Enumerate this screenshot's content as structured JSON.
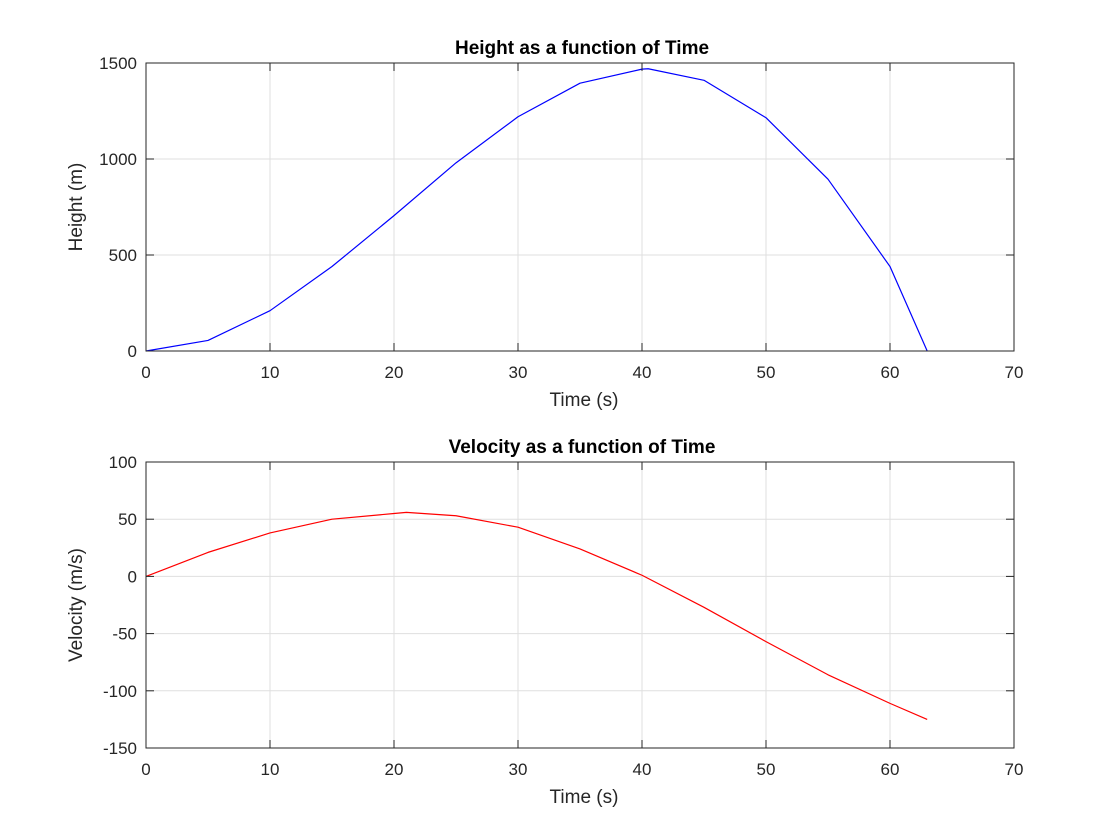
{
  "figure": {
    "background": "#ffffff"
  },
  "chart_data": [
    {
      "type": "line",
      "title": "Height as a function of Time",
      "xlabel": "Time (s)",
      "ylabel": "Height (m)",
      "xlim": [
        0,
        70
      ],
      "ylim": [
        0,
        1500
      ],
      "xticks": [
        0,
        10,
        20,
        30,
        40,
        50,
        60,
        70
      ],
      "yticks": [
        0,
        500,
        1000,
        1500
      ],
      "grid": true,
      "legend": "none",
      "series": [
        {
          "color": "#0000ff",
          "x": [
            0,
            5,
            10,
            15,
            20,
            25,
            30,
            35,
            40,
            40.5,
            45,
            50,
            55,
            60,
            63
          ],
          "y": [
            0,
            55,
            210,
            440,
            705,
            980,
            1220,
            1395,
            1468,
            1470,
            1410,
            1215,
            895,
            440,
            0
          ]
        }
      ]
    },
    {
      "type": "line",
      "title": "Velocity as a function of Time",
      "xlabel": "Time (s)",
      "ylabel": "Velocity (m/s)",
      "xlim": [
        0,
        70
      ],
      "ylim": [
        -150,
        100
      ],
      "xticks": [
        0,
        10,
        20,
        30,
        40,
        50,
        60,
        70
      ],
      "yticks": [
        -150,
        -100,
        -50,
        0,
        50,
        100
      ],
      "grid": true,
      "legend": "none",
      "series": [
        {
          "color": "#ff0000",
          "x": [
            0,
            5,
            10,
            15,
            20,
            21,
            25,
            30,
            35,
            40,
            45,
            50,
            55,
            60,
            63
          ],
          "y": [
            0,
            21,
            38,
            50,
            55,
            56,
            53,
            43,
            24,
            1,
            -27,
            -57,
            -86,
            -111,
            -125
          ]
        }
      ]
    }
  ]
}
